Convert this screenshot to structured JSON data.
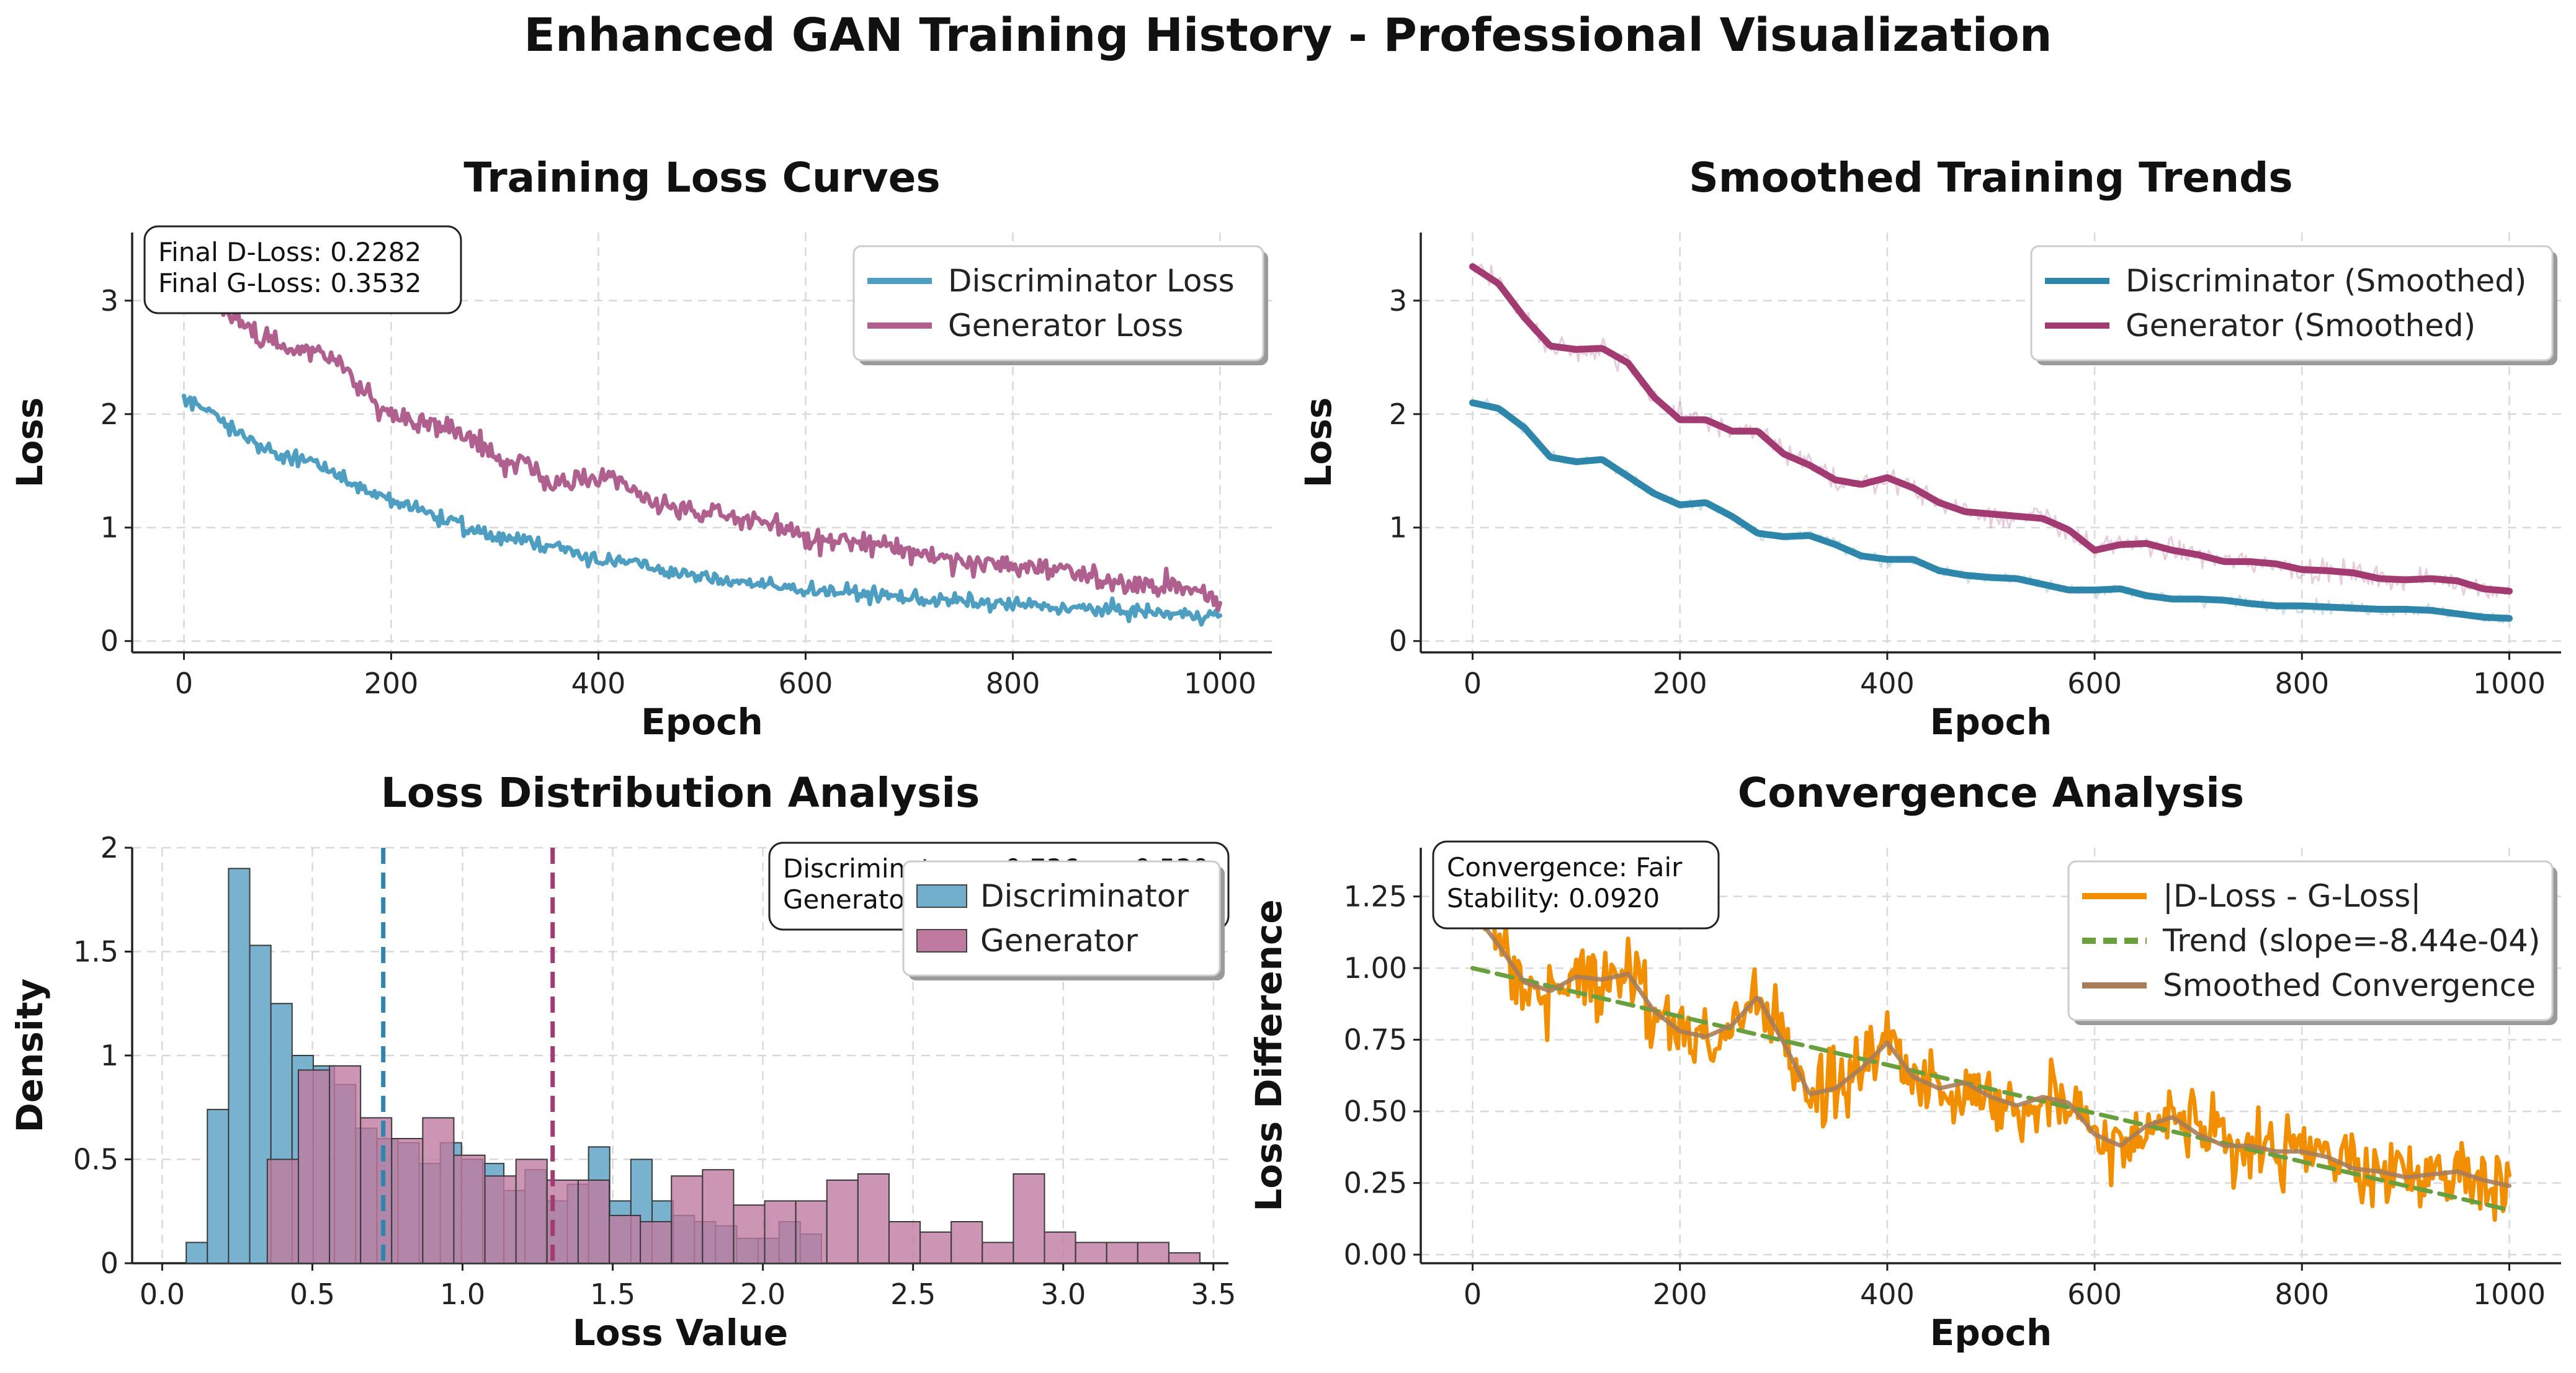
{
  "figure": {
    "title": "Enhanced GAN Training History - Professional Visualization"
  },
  "colors": {
    "discriminator": "#4e9ec2",
    "generator": "#b0608f",
    "disc_smoothed": "#2e86ab",
    "gen_smoothed": "#a23b72",
    "hist_disc": "#71aecb",
    "hist_gen": "#bf7aa0",
    "diff": "#f18f01",
    "trend": "#6a9f3e",
    "smoothed_conv": "#a87d5a"
  },
  "chart_data": [
    {
      "id": "loss_curves",
      "type": "line",
      "title": "Training Loss Curves",
      "xlabel": "Epoch",
      "ylabel": "Loss",
      "xlim": [
        -50,
        1050
      ],
      "ylim": [
        -0.1,
        3.6
      ],
      "xticks": [
        0,
        200,
        400,
        600,
        800,
        1000
      ],
      "yticks": [
        0,
        1,
        2,
        3
      ],
      "grid": true,
      "legend": "top-right",
      "x": [
        0,
        25,
        50,
        75,
        100,
        125,
        150,
        175,
        200,
        225,
        250,
        275,
        300,
        325,
        350,
        375,
        400,
        425,
        450,
        475,
        500,
        525,
        550,
        575,
        600,
        625,
        650,
        675,
        700,
        725,
        750,
        775,
        800,
        825,
        850,
        875,
        900,
        925,
        950,
        975,
        1000
      ],
      "series": [
        {
          "name": "Discriminator Loss",
          "values": [
            2.12,
            2.05,
            1.85,
            1.7,
            1.62,
            1.58,
            1.45,
            1.33,
            1.22,
            1.18,
            1.08,
            0.98,
            0.92,
            0.9,
            0.86,
            0.78,
            0.72,
            0.7,
            0.65,
            0.6,
            0.56,
            0.54,
            0.51,
            0.47,
            0.46,
            0.44,
            0.42,
            0.4,
            0.38,
            0.36,
            0.35,
            0.33,
            0.32,
            0.31,
            0.29,
            0.28,
            0.27,
            0.26,
            0.24,
            0.23,
            0.23
          ]
        },
        {
          "name": "Generator Loss",
          "values": [
            3.3,
            3.1,
            2.85,
            2.65,
            2.58,
            2.56,
            2.45,
            2.2,
            2.0,
            1.95,
            1.88,
            1.8,
            1.65,
            1.55,
            1.42,
            1.38,
            1.45,
            1.35,
            1.25,
            1.15,
            1.12,
            1.1,
            1.08,
            1.02,
            0.9,
            0.88,
            0.86,
            0.84,
            0.8,
            0.75,
            0.72,
            0.68,
            0.66,
            0.64,
            0.6,
            0.56,
            0.54,
            0.5,
            0.48,
            0.45,
            0.35
          ]
        }
      ],
      "annotation": [
        "Final D-Loss: 0.2282",
        "Final G-Loss: 0.3532"
      ]
    },
    {
      "id": "smoothed",
      "type": "line",
      "title": "Smoothed Training Trends",
      "xlabel": "Epoch",
      "ylabel": "Loss",
      "xlim": [
        -50,
        1050
      ],
      "ylim": [
        -0.1,
        3.6
      ],
      "xticks": [
        0,
        200,
        400,
        600,
        800,
        1000
      ],
      "yticks": [
        0,
        1,
        2,
        3
      ],
      "grid": true,
      "legend": "top-right",
      "x": [
        0,
        25,
        50,
        75,
        100,
        125,
        150,
        175,
        200,
        225,
        250,
        275,
        300,
        325,
        350,
        375,
        400,
        425,
        450,
        475,
        500,
        525,
        550,
        575,
        600,
        625,
        650,
        675,
        700,
        725,
        750,
        775,
        800,
        825,
        850,
        875,
        900,
        925,
        950,
        975,
        1000
      ],
      "series": [
        {
          "name": "Discriminator (Smoothed)",
          "values": [
            2.1,
            2.05,
            1.88,
            1.62,
            1.58,
            1.6,
            1.45,
            1.3,
            1.2,
            1.22,
            1.1,
            0.95,
            0.92,
            0.93,
            0.85,
            0.75,
            0.72,
            0.72,
            0.62,
            0.58,
            0.56,
            0.55,
            0.5,
            0.45,
            0.45,
            0.46,
            0.4,
            0.37,
            0.37,
            0.36,
            0.33,
            0.31,
            0.31,
            0.3,
            0.29,
            0.28,
            0.28,
            0.27,
            0.24,
            0.21,
            0.2
          ]
        },
        {
          "name": "Generator (Smoothed)",
          "values": [
            3.3,
            3.15,
            2.85,
            2.6,
            2.57,
            2.58,
            2.45,
            2.15,
            1.95,
            1.95,
            1.85,
            1.85,
            1.65,
            1.55,
            1.42,
            1.38,
            1.44,
            1.35,
            1.22,
            1.14,
            1.12,
            1.1,
            1.08,
            0.98,
            0.8,
            0.85,
            0.86,
            0.8,
            0.76,
            0.7,
            0.7,
            0.68,
            0.63,
            0.62,
            0.6,
            0.55,
            0.54,
            0.55,
            0.53,
            0.46,
            0.44
          ]
        }
      ]
    },
    {
      "id": "distribution",
      "type": "bar",
      "title": "Loss Distribution Analysis",
      "xlabel": "Loss Value",
      "ylabel": "Density",
      "xlim": [
        -0.1,
        3.55
      ],
      "ylim": [
        0,
        2.0
      ],
      "xticks": [
        0.0,
        0.5,
        1.0,
        1.5,
        2.0,
        2.5,
        3.0,
        3.5
      ],
      "yticks": [
        0.0,
        0.5,
        1.0,
        1.5,
        2.0
      ],
      "grid": true,
      "legend": "top-right",
      "series": [
        {
          "name": "Discriminator",
          "bin_start": 0.08,
          "bin_width": 0.0705,
          "values": [
            0.1,
            0.74,
            1.9,
            1.53,
            1.25,
            1.0,
            0.95,
            0.86,
            0.65,
            0.6,
            0.58,
            0.48,
            0.58,
            0.5,
            0.48,
            0.35,
            0.45,
            0.3,
            0.38,
            0.56,
            0.3,
            0.5,
            0.3,
            0.23,
            0.2,
            0.18,
            0.12,
            0.12,
            0.2,
            0.14
          ]
        },
        {
          "name": "Generator",
          "bin_start": 0.35,
          "bin_width": 0.1035,
          "values": [
            0.5,
            0.93,
            0.95,
            0.7,
            0.6,
            0.7,
            0.52,
            0.42,
            0.5,
            0.4,
            0.4,
            0.23,
            0.2,
            0.42,
            0.45,
            0.28,
            0.3,
            0.3,
            0.4,
            0.43,
            0.2,
            0.15,
            0.2,
            0.1,
            0.43,
            0.15,
            0.1,
            0.1,
            0.1,
            0.05
          ]
        }
      ],
      "mean_lines": [
        0.736,
        1.3
      ],
      "annotation": [
        "Discriminator μ=0.736, σ=0.530",
        "Generator μ=1.30"
      ]
    },
    {
      "id": "convergence",
      "type": "line",
      "title": "Convergence Analysis",
      "xlabel": "Epoch",
      "ylabel": "Loss Difference",
      "xlim": [
        -50,
        1050
      ],
      "ylim": [
        -0.03,
        1.42
      ],
      "xticks": [
        0,
        200,
        400,
        600,
        800,
        1000
      ],
      "yticks": [
        0.0,
        0.25,
        0.5,
        0.75,
        1.0,
        1.25
      ],
      "ytick_labels": [
        "0.00",
        "0.25",
        "0.50",
        "0.75",
        "1.00",
        "1.25"
      ],
      "grid": true,
      "legend": "top-right",
      "x": [
        0,
        25,
        50,
        75,
        100,
        125,
        150,
        175,
        200,
        225,
        250,
        275,
        300,
        325,
        350,
        375,
        400,
        425,
        450,
        475,
        500,
        525,
        550,
        575,
        600,
        625,
        650,
        675,
        700,
        725,
        750,
        775,
        800,
        825,
        850,
        875,
        900,
        925,
        950,
        975,
        1000
      ],
      "series": [
        {
          "name": "|D-Loss - G-Loss|",
          "values": [
            1.2,
            1.12,
            0.95,
            0.9,
            0.98,
            0.95,
            1.0,
            0.85,
            0.78,
            0.75,
            0.78,
            0.9,
            0.75,
            0.55,
            0.58,
            0.65,
            0.75,
            0.62,
            0.58,
            0.6,
            0.55,
            0.52,
            0.55,
            0.55,
            0.42,
            0.38,
            0.45,
            0.5,
            0.42,
            0.38,
            0.38,
            0.36,
            0.36,
            0.34,
            0.3,
            0.29,
            0.27,
            0.28,
            0.3,
            0.26,
            0.24
          ]
        },
        {
          "name": "Trend (slope=-8.44e-04)",
          "x": [
            0,
            1000
          ],
          "values": [
            1.0,
            0.156
          ]
        },
        {
          "name": "Smoothed Convergence",
          "values": [
            1.2,
            1.08,
            0.95,
            0.92,
            0.97,
            0.96,
            0.98,
            0.85,
            0.78,
            0.76,
            0.8,
            0.9,
            0.74,
            0.56,
            0.58,
            0.65,
            0.74,
            0.62,
            0.58,
            0.6,
            0.55,
            0.52,
            0.55,
            0.53,
            0.42,
            0.38,
            0.45,
            0.48,
            0.42,
            0.38,
            0.38,
            0.36,
            0.36,
            0.34,
            0.3,
            0.29,
            0.27,
            0.28,
            0.29,
            0.26,
            0.24
          ]
        }
      ],
      "annotation": [
        "Convergence: Fair",
        "Stability: 0.0920"
      ]
    }
  ]
}
